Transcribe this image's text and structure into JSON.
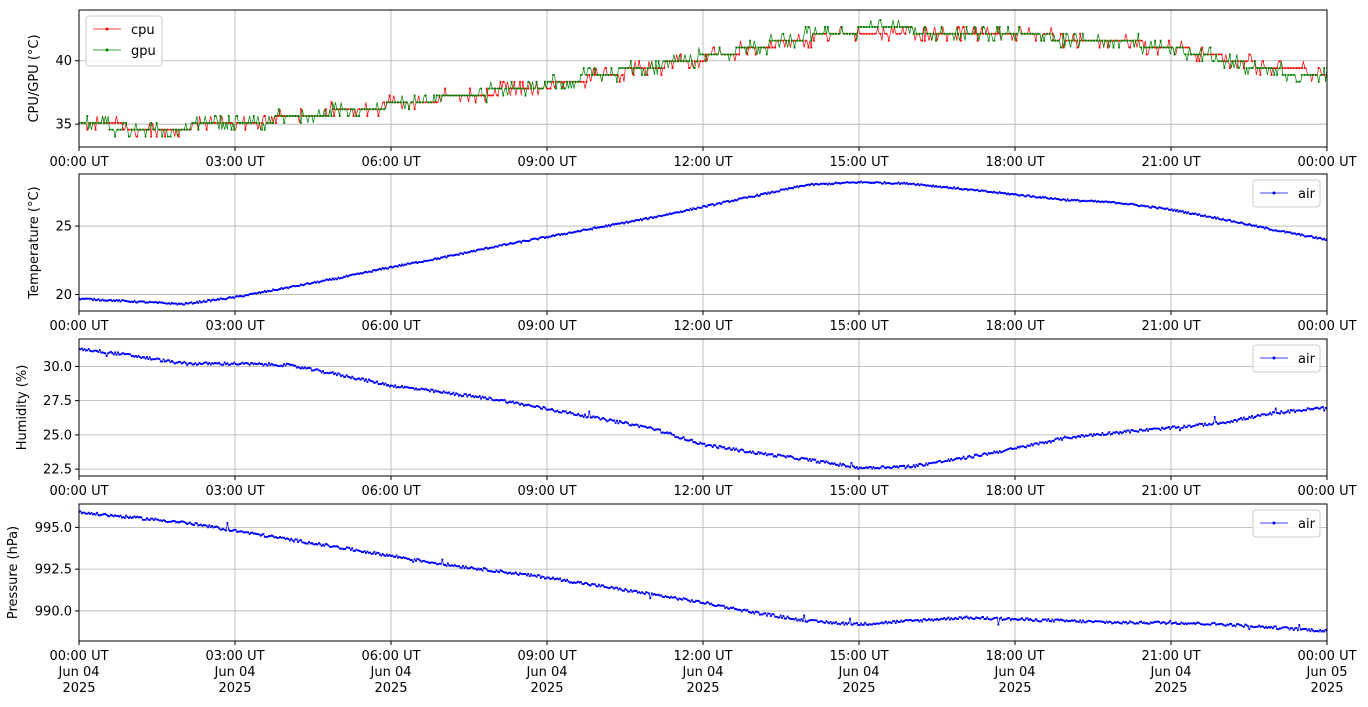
{
  "figure": {
    "background": "#ffffff",
    "grid_color": "#b0b0b0"
  },
  "x_ticks": [
    "00:00 UT",
    "03:00 UT",
    "06:00 UT",
    "09:00 UT",
    "12:00 UT",
    "15:00 UT",
    "18:00 UT",
    "21:00 UT",
    "00:00 UT"
  ],
  "x_tick_dates": [
    "Jun 04",
    "Jun 04",
    "Jun 04",
    "Jun 04",
    "Jun 04",
    "Jun 04",
    "Jun 04",
    "Jun 04",
    "Jun 05"
  ],
  "x_tick_years": [
    "2025",
    "2025",
    "2025",
    "2025",
    "2025",
    "2025",
    "2025",
    "2025",
    "2025"
  ],
  "chart_data": [
    {
      "type": "line",
      "ylabel": "CPU/GPU (°C)",
      "xlabel": "",
      "xlim": [
        "2025-06-04 00:00",
        "2025-06-05 00:00"
      ],
      "ylim": [
        33.2,
        44.0
      ],
      "yticks": [
        "35",
        "40"
      ],
      "ytick_values": [
        35,
        40
      ],
      "grid": true,
      "legend": "upper left",
      "x": [
        "00:00",
        "01:00",
        "02:00",
        "03:00",
        "04:00",
        "05:00",
        "06:00",
        "07:00",
        "08:00",
        "09:00",
        "10:00",
        "11:00",
        "12:00",
        "13:00",
        "14:00",
        "15:00",
        "16:00",
        "17:00",
        "18:00",
        "19:00",
        "20:00",
        "21:00",
        "22:00",
        "23:00",
        "24:00"
      ],
      "series": [
        {
          "name": "cpu",
          "color": "#ff0000",
          "values": [
            35.0,
            34.8,
            34.8,
            35.0,
            35.5,
            36.0,
            36.5,
            37.0,
            37.5,
            38.0,
            38.8,
            39.5,
            40.2,
            41.0,
            41.8,
            42.3,
            42.4,
            42.2,
            42.0,
            41.8,
            41.5,
            41.1,
            40.2,
            39.4,
            39.0
          ]
        },
        {
          "name": "gpu",
          "color": "#008000",
          "values": [
            35.0,
            34.7,
            34.8,
            35.0,
            35.5,
            36.0,
            36.5,
            37.1,
            37.6,
            38.1,
            38.9,
            39.6,
            40.3,
            41.1,
            41.9,
            42.4,
            42.4,
            42.3,
            42.0,
            41.8,
            41.5,
            41.0,
            40.0,
            39.2,
            38.8
          ]
        }
      ]
    },
    {
      "type": "line",
      "ylabel": "Temperature (°C)",
      "xlabel": "",
      "xlim": [
        "2025-06-04 00:00",
        "2025-06-05 00:00"
      ],
      "ylim": [
        18.8,
        28.8
      ],
      "yticks": [
        "20",
        "25"
      ],
      "ytick_values": [
        20,
        25
      ],
      "grid": true,
      "legend": "upper right",
      "x": [
        "00:00",
        "01:00",
        "02:00",
        "03:00",
        "04:00",
        "05:00",
        "06:00",
        "07:00",
        "08:00",
        "09:00",
        "10:00",
        "11:00",
        "12:00",
        "13:00",
        "14:00",
        "15:00",
        "16:00",
        "17:00",
        "18:00",
        "19:00",
        "20:00",
        "21:00",
        "22:00",
        "23:00",
        "24:00"
      ],
      "series": [
        {
          "name": "air",
          "color": "#0000ff",
          "values": [
            19.7,
            19.5,
            19.3,
            19.8,
            20.5,
            21.2,
            22.0,
            22.7,
            23.5,
            24.2,
            24.9,
            25.6,
            26.4,
            27.2,
            28.0,
            28.2,
            28.1,
            27.7,
            27.3,
            26.9,
            26.7,
            26.2,
            25.5,
            24.7,
            24.0
          ]
        }
      ]
    },
    {
      "type": "line",
      "ylabel": "Humidity (%)",
      "xlabel": "",
      "xlim": [
        "2025-06-04 00:00",
        "2025-06-05 00:00"
      ],
      "ylim": [
        22.0,
        32.0
      ],
      "yticks": [
        "22.5",
        "25.0",
        "27.5",
        "30.0"
      ],
      "ytick_values": [
        22.5,
        25.0,
        27.5,
        30.0
      ],
      "grid": true,
      "legend": "upper right",
      "x": [
        "00:00",
        "01:00",
        "02:00",
        "03:00",
        "04:00",
        "05:00",
        "06:00",
        "07:00",
        "08:00",
        "09:00",
        "10:00",
        "11:00",
        "12:00",
        "13:00",
        "14:00",
        "15:00",
        "16:00",
        "17:00",
        "18:00",
        "19:00",
        "20:00",
        "21:00",
        "22:00",
        "23:00",
        "24:00"
      ],
      "series": [
        {
          "name": "air",
          "color": "#0000ff",
          "values": [
            31.3,
            30.8,
            30.2,
            30.2,
            30.1,
            29.4,
            28.6,
            28.1,
            27.6,
            26.9,
            26.2,
            25.5,
            24.3,
            23.7,
            23.2,
            22.6,
            22.7,
            23.3,
            24.0,
            24.8,
            25.2,
            25.5,
            25.9,
            26.6,
            27.0
          ]
        }
      ]
    },
    {
      "type": "line",
      "ylabel": "Pressure (hPa)",
      "xlabel": "",
      "xlim": [
        "2025-06-04 00:00",
        "2025-06-05 00:00"
      ],
      "ylim": [
        988.2,
        996.4
      ],
      "yticks": [
        "990.0",
        "992.5",
        "995.0"
      ],
      "ytick_values": [
        990.0,
        992.5,
        995.0
      ],
      "grid": true,
      "legend": "upper right",
      "x": [
        "00:00",
        "01:00",
        "02:00",
        "03:00",
        "04:00",
        "05:00",
        "06:00",
        "07:00",
        "08:00",
        "09:00",
        "10:00",
        "11:00",
        "12:00",
        "13:00",
        "14:00",
        "15:00",
        "16:00",
        "17:00",
        "18:00",
        "19:00",
        "20:00",
        "21:00",
        "22:00",
        "23:00",
        "24:00"
      ],
      "series": [
        {
          "name": "air",
          "color": "#0000ff",
          "values": [
            995.9,
            995.6,
            995.3,
            994.8,
            994.3,
            993.8,
            993.3,
            992.8,
            992.4,
            992.0,
            991.5,
            991.0,
            990.5,
            989.9,
            989.4,
            989.2,
            989.4,
            989.6,
            989.5,
            989.4,
            989.3,
            989.3,
            989.2,
            989.0,
            988.8
          ]
        }
      ]
    }
  ]
}
